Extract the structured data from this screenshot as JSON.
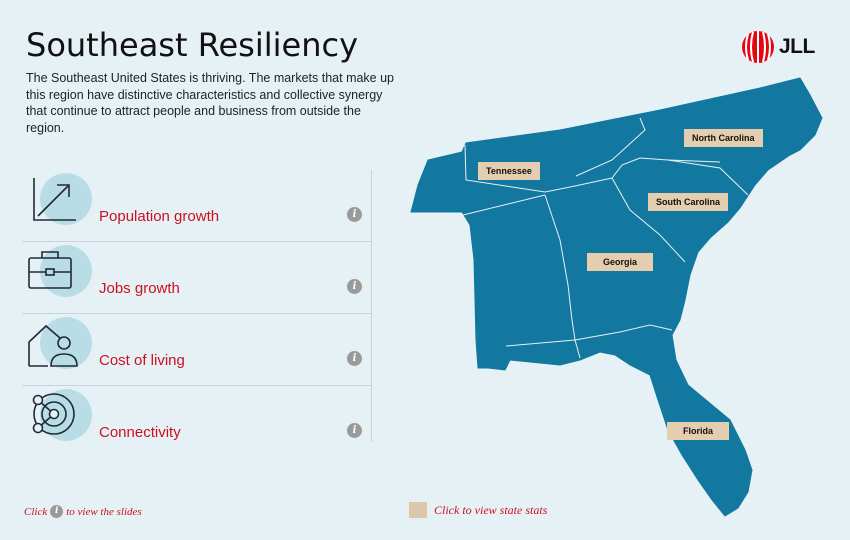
{
  "header": {
    "title": "Southeast Resiliency",
    "intro": "The Southeast United States is thriving. The markets that make up this region have distinctive characteristics and collective synergy that continue to attract people and business from outside the region."
  },
  "logo": {
    "text": "JLL",
    "icon": "jll-logo-mark"
  },
  "metrics": [
    {
      "label": "Population growth",
      "icon": "growth-arrow-icon",
      "info": "i"
    },
    {
      "label": "Jobs growth",
      "icon": "briefcase-icon",
      "info": "i"
    },
    {
      "label": "Cost of living",
      "icon": "home-person-icon",
      "info": "i"
    },
    {
      "label": "Connectivity",
      "icon": "network-icon",
      "info": "i"
    }
  ],
  "states": [
    {
      "label": "Tennessee"
    },
    {
      "label": "North Carolina"
    },
    {
      "label": "South Carolina"
    },
    {
      "label": "Georgia"
    },
    {
      "label": "Florida"
    }
  ],
  "footer": {
    "slides_hint_before": "Click",
    "slides_hint_icon": "i",
    "slides_hint_after": "to view the slides",
    "state_hint": "Click to view state stats"
  },
  "colors": {
    "background": "#e6f1f6",
    "map_fill": "#13789f",
    "accent_red": "#cc1020",
    "tag_fill": "#e5cdb0",
    "icon_circle": "#b9dde6"
  }
}
